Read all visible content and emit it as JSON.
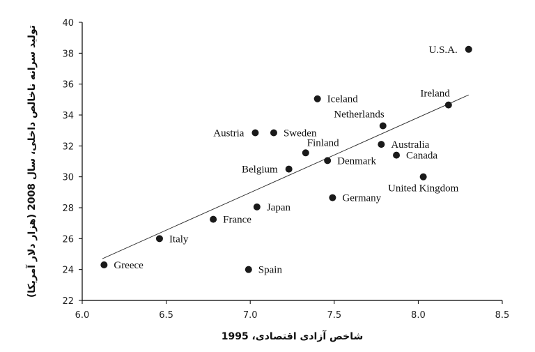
{
  "chart_data": {
    "type": "scatter",
    "xlabel": "شاخص آزادی اقتصادی، 1995",
    "ylabel": "تولید سرانه ناخالص داخلی، سال 2008 (هزار دلار آمریکا)",
    "xlim": [
      6.0,
      8.5
    ],
    "ylim": [
      22,
      40
    ],
    "xticks": [
      "6.0",
      "6.5",
      "7.0",
      "7.5",
      "8.0",
      "8.5"
    ],
    "yticks": [
      "22",
      "24",
      "26",
      "28",
      "30",
      "32",
      "34",
      "36",
      "38",
      "40"
    ],
    "grid": false,
    "trendline": {
      "x": [
        6.12,
        8.3
      ],
      "y": [
        24.7,
        35.3
      ]
    },
    "points": [
      {
        "label": "Greece",
        "x": 6.13,
        "y": 24.3,
        "label_side": "right"
      },
      {
        "label": "Italy",
        "x": 6.46,
        "y": 26.0,
        "label_side": "right"
      },
      {
        "label": "France",
        "x": 6.78,
        "y": 27.25,
        "label_side": "right"
      },
      {
        "label": "Spain",
        "x": 6.99,
        "y": 24.0,
        "label_side": "right"
      },
      {
        "label": "Japan",
        "x": 7.04,
        "y": 28.05,
        "label_side": "right"
      },
      {
        "label": "Austria",
        "x": 7.03,
        "y": 32.85,
        "label_side": "left"
      },
      {
        "label": "Sweden",
        "x": 7.14,
        "y": 32.85,
        "label_side": "right"
      },
      {
        "label": "Belgium",
        "x": 7.23,
        "y": 30.5,
        "label_side": "left"
      },
      {
        "label": "Finland",
        "x": 7.33,
        "y": 31.55,
        "label_side": "above-right"
      },
      {
        "label": "Iceland",
        "x": 7.4,
        "y": 35.05,
        "label_side": "right"
      },
      {
        "label": "Denmark",
        "x": 7.46,
        "y": 31.05,
        "label_side": "right"
      },
      {
        "label": "Germany",
        "x": 7.49,
        "y": 28.65,
        "label_side": "right"
      },
      {
        "label": "Netherlands",
        "x": 7.79,
        "y": 33.3,
        "label_side": "above-left"
      },
      {
        "label": "Australia",
        "x": 7.78,
        "y": 32.1,
        "label_side": "right"
      },
      {
        "label": "Canada",
        "x": 7.87,
        "y": 31.4,
        "label_side": "right"
      },
      {
        "label": "United Kingdom",
        "x": 8.03,
        "y": 30.0,
        "label_side": "below"
      },
      {
        "label": "Ireland",
        "x": 8.18,
        "y": 34.65,
        "label_side": "above-left"
      },
      {
        "label": "U.S.A.",
        "x": 8.3,
        "y": 38.25,
        "label_side": "left"
      }
    ]
  }
}
